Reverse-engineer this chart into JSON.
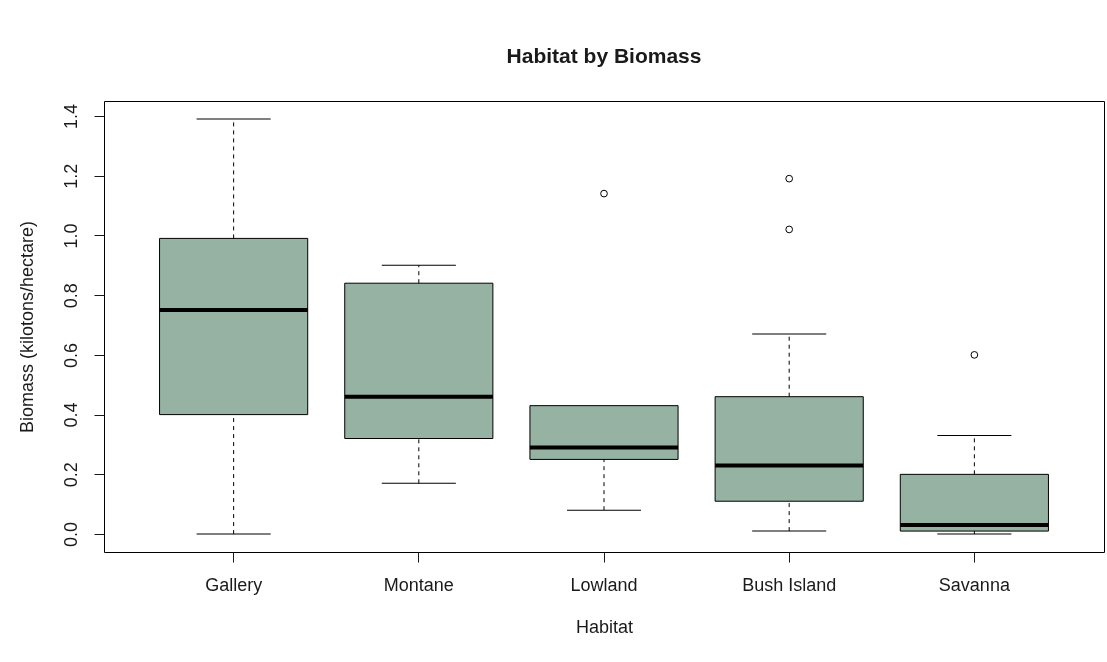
{
  "chart_data": {
    "type": "box",
    "title": "Habitat by Biomass",
    "xlabel": "Habitat",
    "ylabel": "Biomass (kilotons/hectare)",
    "categories": [
      "Gallery",
      "Montane",
      "Lowland",
      "Bush Island",
      "Savanna"
    ],
    "series": [
      {
        "color": "#96b2a2",
        "boxes": [
          {
            "low": 0.0,
            "q1": 0.4,
            "median": 0.75,
            "q3": 0.99,
            "high": 1.39
          },
          {
            "low": 0.17,
            "q1": 0.32,
            "median": 0.46,
            "q3": 0.84,
            "high": 0.9
          },
          {
            "low": 0.08,
            "q1": 0.25,
            "median": 0.29,
            "q3": 0.43,
            "high": 0.43,
            "outliers": [
              1.14
            ]
          },
          {
            "low": 0.01,
            "q1": 0.11,
            "median": 0.23,
            "q3": 0.46,
            "high": 0.67,
            "outliers": [
              1.19,
              1.02
            ]
          },
          {
            "low": 0.0,
            "q1": 0.01,
            "median": 0.03,
            "q3": 0.2,
            "high": 0.33,
            "outliers": [
              0.6
            ]
          }
        ]
      }
    ],
    "ylim": [
      -0.06,
      1.45
    ],
    "yticks": [
      {
        "value": 0,
        "label": "0.0"
      },
      0.2,
      0.4,
      0.6,
      0.8,
      {
        "value": 1,
        "label": "1.0"
      },
      1.2,
      1.4
    ]
  }
}
